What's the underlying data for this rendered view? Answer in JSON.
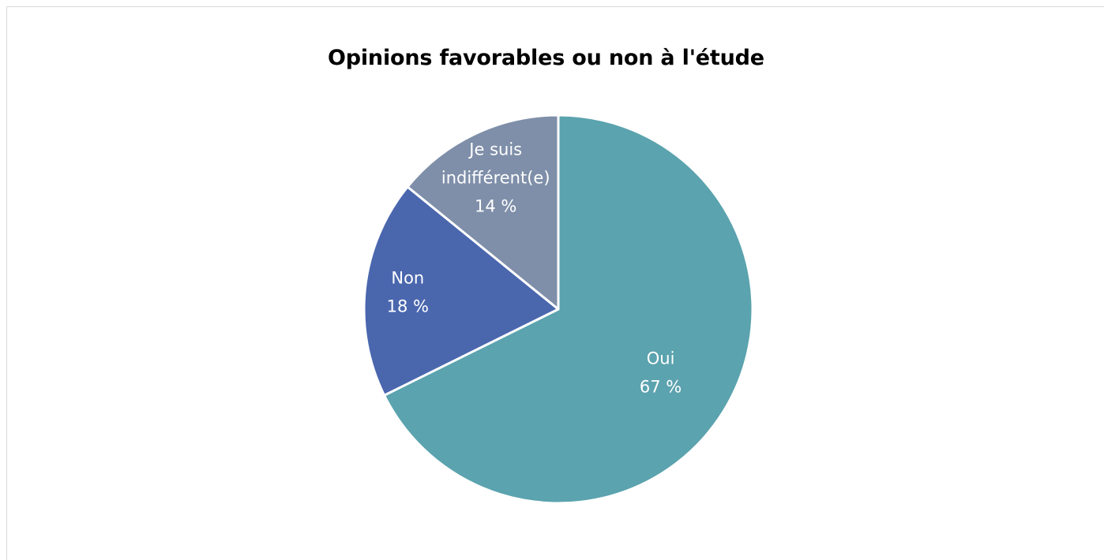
{
  "chart_data": {
    "type": "pie",
    "title": "Opinions favorables ou non à l'étude",
    "slices": [
      {
        "name": "Oui",
        "value": 67,
        "label_lines": [
          "Oui",
          "67 %"
        ],
        "color": "#5BA3AE"
      },
      {
        "name": "Non",
        "value": 18,
        "label_lines": [
          "Non",
          "18 %"
        ],
        "color": "#4A67AE"
      },
      {
        "name": "Je suis indifférent(e)",
        "value": 14,
        "label_lines": [
          "Je suis",
          "indifférent(e)",
          "14 %"
        ],
        "color": "#7F8FA9"
      }
    ],
    "legend": "none",
    "data_labels": "inside"
  }
}
